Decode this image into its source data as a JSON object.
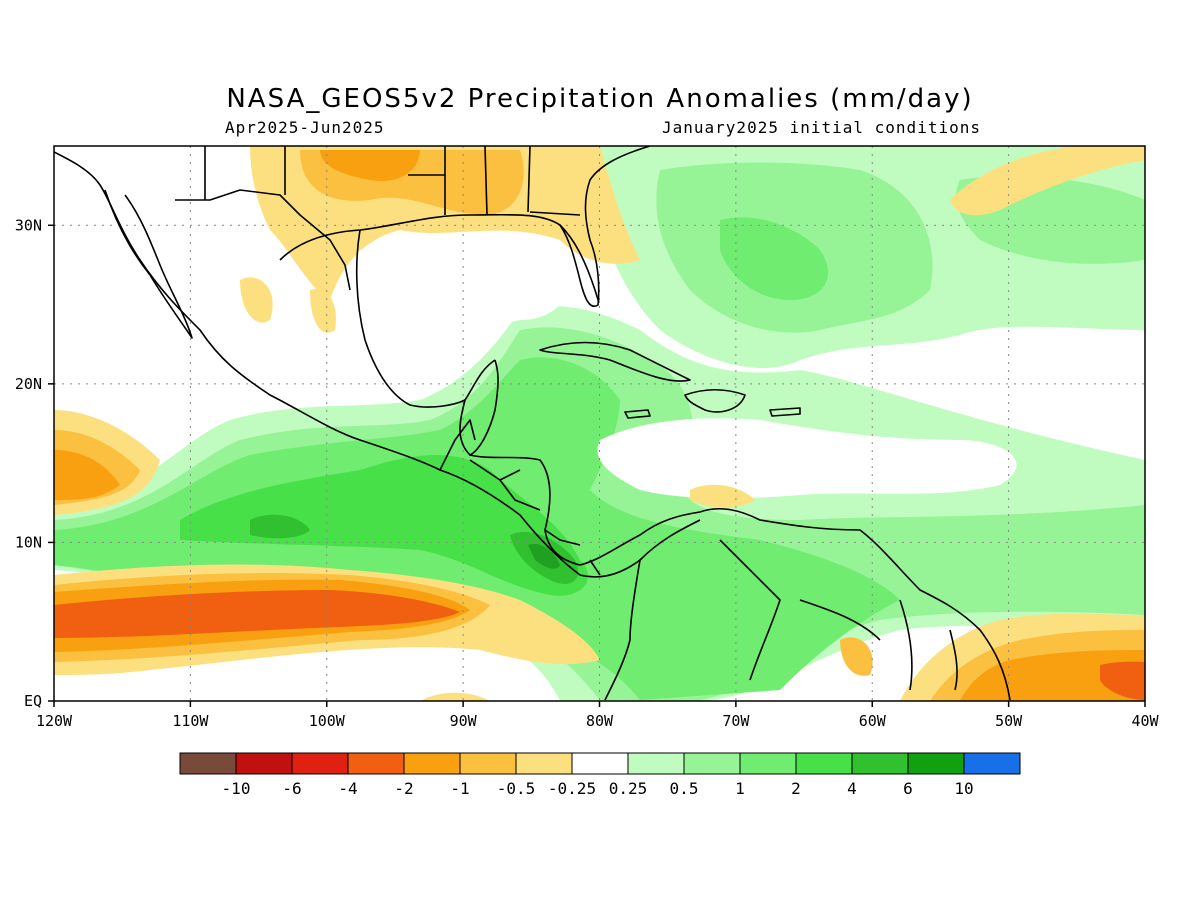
{
  "title": "NASA_GEOS5v2 Precipitation Anomalies (mm/day)",
  "subtitle_left": "Apr2025-Jun2025",
  "subtitle_right": "January2025 initial conditions",
  "map": {
    "lon_range": [
      -120,
      -40
    ],
    "lat_range": [
      0,
      35
    ],
    "x_ticks": [
      {
        "lon": -120,
        "label": "120W"
      },
      {
        "lon": -110,
        "label": "110W"
      },
      {
        "lon": -100,
        "label": "100W"
      },
      {
        "lon": -90,
        "label": "90W"
      },
      {
        "lon": -80,
        "label": "80W"
      },
      {
        "lon": -70,
        "label": "70W"
      },
      {
        "lon": -60,
        "label": "60W"
      },
      {
        "lon": -50,
        "label": "50W"
      },
      {
        "lon": -40,
        "label": "40W"
      }
    ],
    "y_ticks": [
      {
        "lat": 0,
        "label": "EQ"
      },
      {
        "lat": 10,
        "label": "10N"
      },
      {
        "lat": 20,
        "label": "20N"
      },
      {
        "lat": 30,
        "label": "30N"
      }
    ],
    "grid": "dotted",
    "anomaly_regions": [
      {
        "level": "-4",
        "color": "#f06010",
        "lon": [
          -120,
          -88
        ],
        "lat": [
          4,
          8
        ]
      },
      {
        "level": "-2",
        "color": "#f9a010",
        "lon": [
          -120,
          -115
        ],
        "lat": [
          11,
          16
        ]
      },
      {
        "level": "-2",
        "color": "#f9a010",
        "lon": [
          -50,
          -40
        ],
        "lat": [
          0,
          5
        ]
      },
      {
        "level": "4",
        "color": "#3ac83a",
        "lon": [
          -112,
          -80
        ],
        "lat": [
          8,
          13
        ]
      },
      {
        "level": "6",
        "color": "#20a020",
        "lon": [
          -87,
          -82
        ],
        "lat": [
          8,
          11
        ]
      },
      {
        "level": "1",
        "color": "#80ee80",
        "lon": [
          -75,
          -50
        ],
        "lat": [
          22,
          32
        ]
      },
      {
        "level": "0.5",
        "color": "#c0fcc0",
        "lon": [
          -60,
          -40
        ],
        "lat": [
          18,
          28
        ]
      }
    ]
  },
  "colorbar": {
    "colors": [
      "#774a3a",
      "#c01010",
      "#e02010",
      "#f06010",
      "#f9a010",
      "#fbc040",
      "#fce080",
      "#ffffff",
      "#c0fcc0",
      "#96f496",
      "#70ec70",
      "#48e048",
      "#30c030",
      "#10a010",
      "#1870e8"
    ],
    "labels": [
      "-10",
      "-6",
      "-4",
      "-2",
      "-1",
      "-0.5",
      "-0.25",
      "0.25",
      "0.5",
      "1",
      "2",
      "4",
      "6",
      "10"
    ]
  }
}
